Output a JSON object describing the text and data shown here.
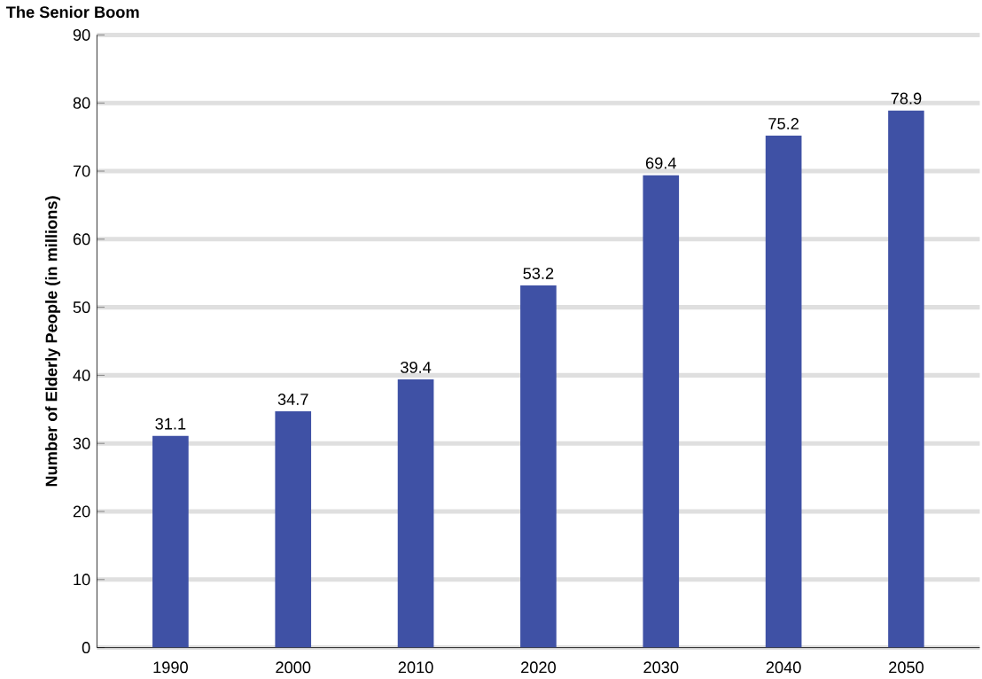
{
  "chart_data": {
    "type": "bar",
    "title": "The Senior Boom",
    "ylabel": "Number of Elderly People (in millions)",
    "categories": [
      "1990",
      "2000",
      "2010",
      "2020",
      "2030",
      "2040",
      "2050"
    ],
    "values": [
      31.1,
      34.7,
      39.4,
      53.2,
      69.4,
      75.2,
      78.9
    ],
    "color": "#3f51a5",
    "ylim": [
      0,
      90
    ],
    "yticks": [
      0,
      10,
      20,
      30,
      40,
      50,
      60,
      70,
      80,
      90
    ],
    "grid": "y",
    "data_labels": true
  }
}
